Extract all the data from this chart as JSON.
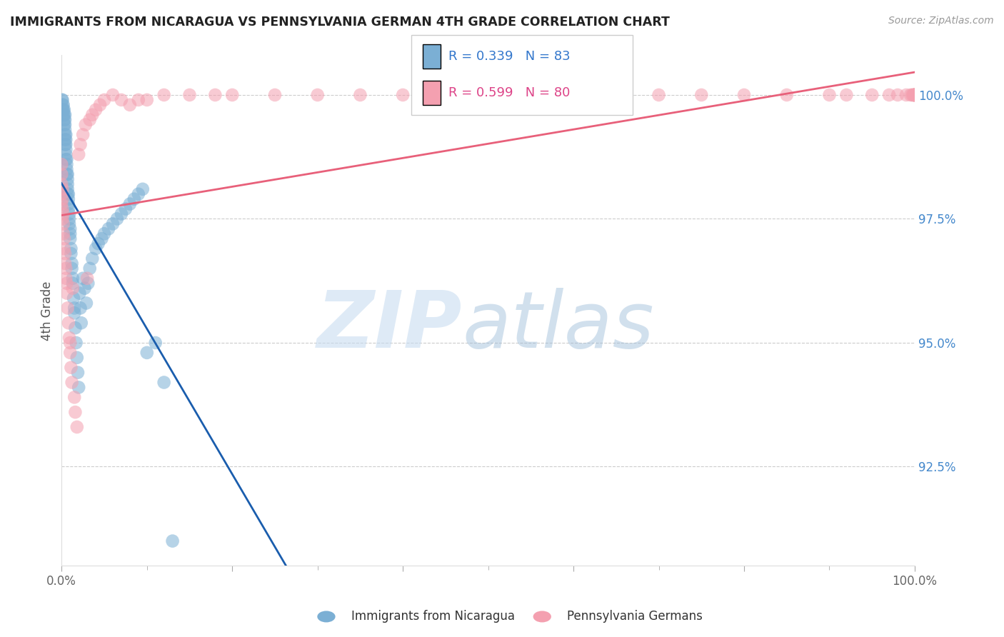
{
  "title": "IMMIGRANTS FROM NICARAGUA VS PENNSYLVANIA GERMAN 4TH GRADE CORRELATION CHART",
  "source": "Source: ZipAtlas.com",
  "ylabel": "4th Grade",
  "ylabel_right_ticks": [
    "100.0%",
    "97.5%",
    "95.0%",
    "92.5%"
  ],
  "ylabel_right_vals": [
    1.0,
    0.975,
    0.95,
    0.925
  ],
  "legend_blue_R": "R = 0.339",
  "legend_blue_N": "N = 83",
  "legend_pink_R": "R = 0.599",
  "legend_pink_N": "N = 80",
  "legend_label_blue": "Immigrants from Nicaragua",
  "legend_label_pink": "Pennsylvania Germans",
  "color_blue": "#7BAFD4",
  "color_pink": "#F4A0B0",
  "color_blue_line": "#1A5DAD",
  "color_pink_line": "#E8607A",
  "background": "#FFFFFF",
  "xlim": [
    0.0,
    1.0
  ],
  "ylim": [
    0.905,
    1.008
  ],
  "blue_x": [
    0.0005,
    0.001,
    0.001,
    0.0015,
    0.002,
    0.002,
    0.002,
    0.003,
    0.003,
    0.003,
    0.003,
    0.004,
    0.004,
    0.004,
    0.004,
    0.004,
    0.004,
    0.004,
    0.005,
    0.005,
    0.005,
    0.005,
    0.005,
    0.005,
    0.006,
    0.006,
    0.006,
    0.006,
    0.007,
    0.007,
    0.007,
    0.007,
    0.007,
    0.008,
    0.008,
    0.008,
    0.008,
    0.009,
    0.009,
    0.009,
    0.01,
    0.01,
    0.01,
    0.011,
    0.011,
    0.012,
    0.012,
    0.013,
    0.013,
    0.014,
    0.015,
    0.015,
    0.016,
    0.017,
    0.018,
    0.019,
    0.02,
    0.021,
    0.022,
    0.023,
    0.025,
    0.027,
    0.029,
    0.031,
    0.033,
    0.036,
    0.04,
    0.043,
    0.047,
    0.05,
    0.055,
    0.06,
    0.065,
    0.07,
    0.075,
    0.08,
    0.085,
    0.09,
    0.095,
    0.1,
    0.11,
    0.12,
    0.13
  ],
  "blue_y": [
    0.999,
    0.998,
    0.999,
    0.997,
    0.996,
    0.997,
    0.998,
    0.994,
    0.995,
    0.996,
    0.997,
    0.99,
    0.991,
    0.992,
    0.993,
    0.994,
    0.995,
    0.996,
    0.987,
    0.988,
    0.989,
    0.99,
    0.991,
    0.992,
    0.984,
    0.985,
    0.986,
    0.987,
    0.98,
    0.981,
    0.982,
    0.983,
    0.984,
    0.977,
    0.978,
    0.979,
    0.98,
    0.974,
    0.975,
    0.976,
    0.971,
    0.972,
    0.973,
    0.968,
    0.969,
    0.965,
    0.966,
    0.962,
    0.963,
    0.959,
    0.956,
    0.957,
    0.953,
    0.95,
    0.947,
    0.944,
    0.941,
    0.96,
    0.957,
    0.954,
    0.963,
    0.961,
    0.958,
    0.962,
    0.965,
    0.967,
    0.969,
    0.97,
    0.971,
    0.972,
    0.973,
    0.974,
    0.975,
    0.976,
    0.977,
    0.978,
    0.979,
    0.98,
    0.981,
    0.948,
    0.95,
    0.942,
    0.91
  ],
  "pink_x": [
    0.0,
    0.0,
    0.0,
    0.0,
    0.0,
    0.001,
    0.001,
    0.001,
    0.001,
    0.002,
    0.002,
    0.002,
    0.003,
    0.003,
    0.004,
    0.004,
    0.005,
    0.005,
    0.006,
    0.006,
    0.007,
    0.008,
    0.009,
    0.01,
    0.01,
    0.011,
    0.012,
    0.013,
    0.015,
    0.016,
    0.018,
    0.02,
    0.022,
    0.025,
    0.028,
    0.03,
    0.033,
    0.036,
    0.04,
    0.045,
    0.05,
    0.06,
    0.07,
    0.08,
    0.09,
    0.1,
    0.12,
    0.15,
    0.18,
    0.2,
    0.25,
    0.3,
    0.35,
    0.4,
    0.45,
    0.5,
    0.55,
    0.6,
    0.65,
    0.7,
    0.75,
    0.8,
    0.85,
    0.9,
    0.92,
    0.95,
    0.97,
    0.98,
    0.99,
    0.995,
    0.997,
    0.998,
    0.999,
    0.9995,
    0.9998,
    0.9999,
    1.0,
    1.0,
    1.0,
    1.0
  ],
  "pink_y": [
    0.978,
    0.98,
    0.982,
    0.984,
    0.986,
    0.975,
    0.977,
    0.979,
    0.981,
    0.972,
    0.974,
    0.976,
    0.969,
    0.971,
    0.966,
    0.968,
    0.963,
    0.965,
    0.96,
    0.962,
    0.957,
    0.954,
    0.951,
    0.948,
    0.95,
    0.945,
    0.942,
    0.961,
    0.939,
    0.936,
    0.933,
    0.988,
    0.99,
    0.992,
    0.994,
    0.963,
    0.995,
    0.996,
    0.997,
    0.998,
    0.999,
    1.0,
    0.999,
    0.998,
    0.999,
    0.999,
    1.0,
    1.0,
    1.0,
    1.0,
    1.0,
    1.0,
    1.0,
    1.0,
    1.0,
    1.0,
    1.0,
    1.0,
    1.0,
    1.0,
    1.0,
    1.0,
    1.0,
    1.0,
    1.0,
    1.0,
    1.0,
    1.0,
    1.0,
    1.0,
    1.0,
    1.0,
    1.0,
    1.0,
    1.0,
    1.0,
    1.0,
    1.0,
    1.0,
    1.0
  ]
}
